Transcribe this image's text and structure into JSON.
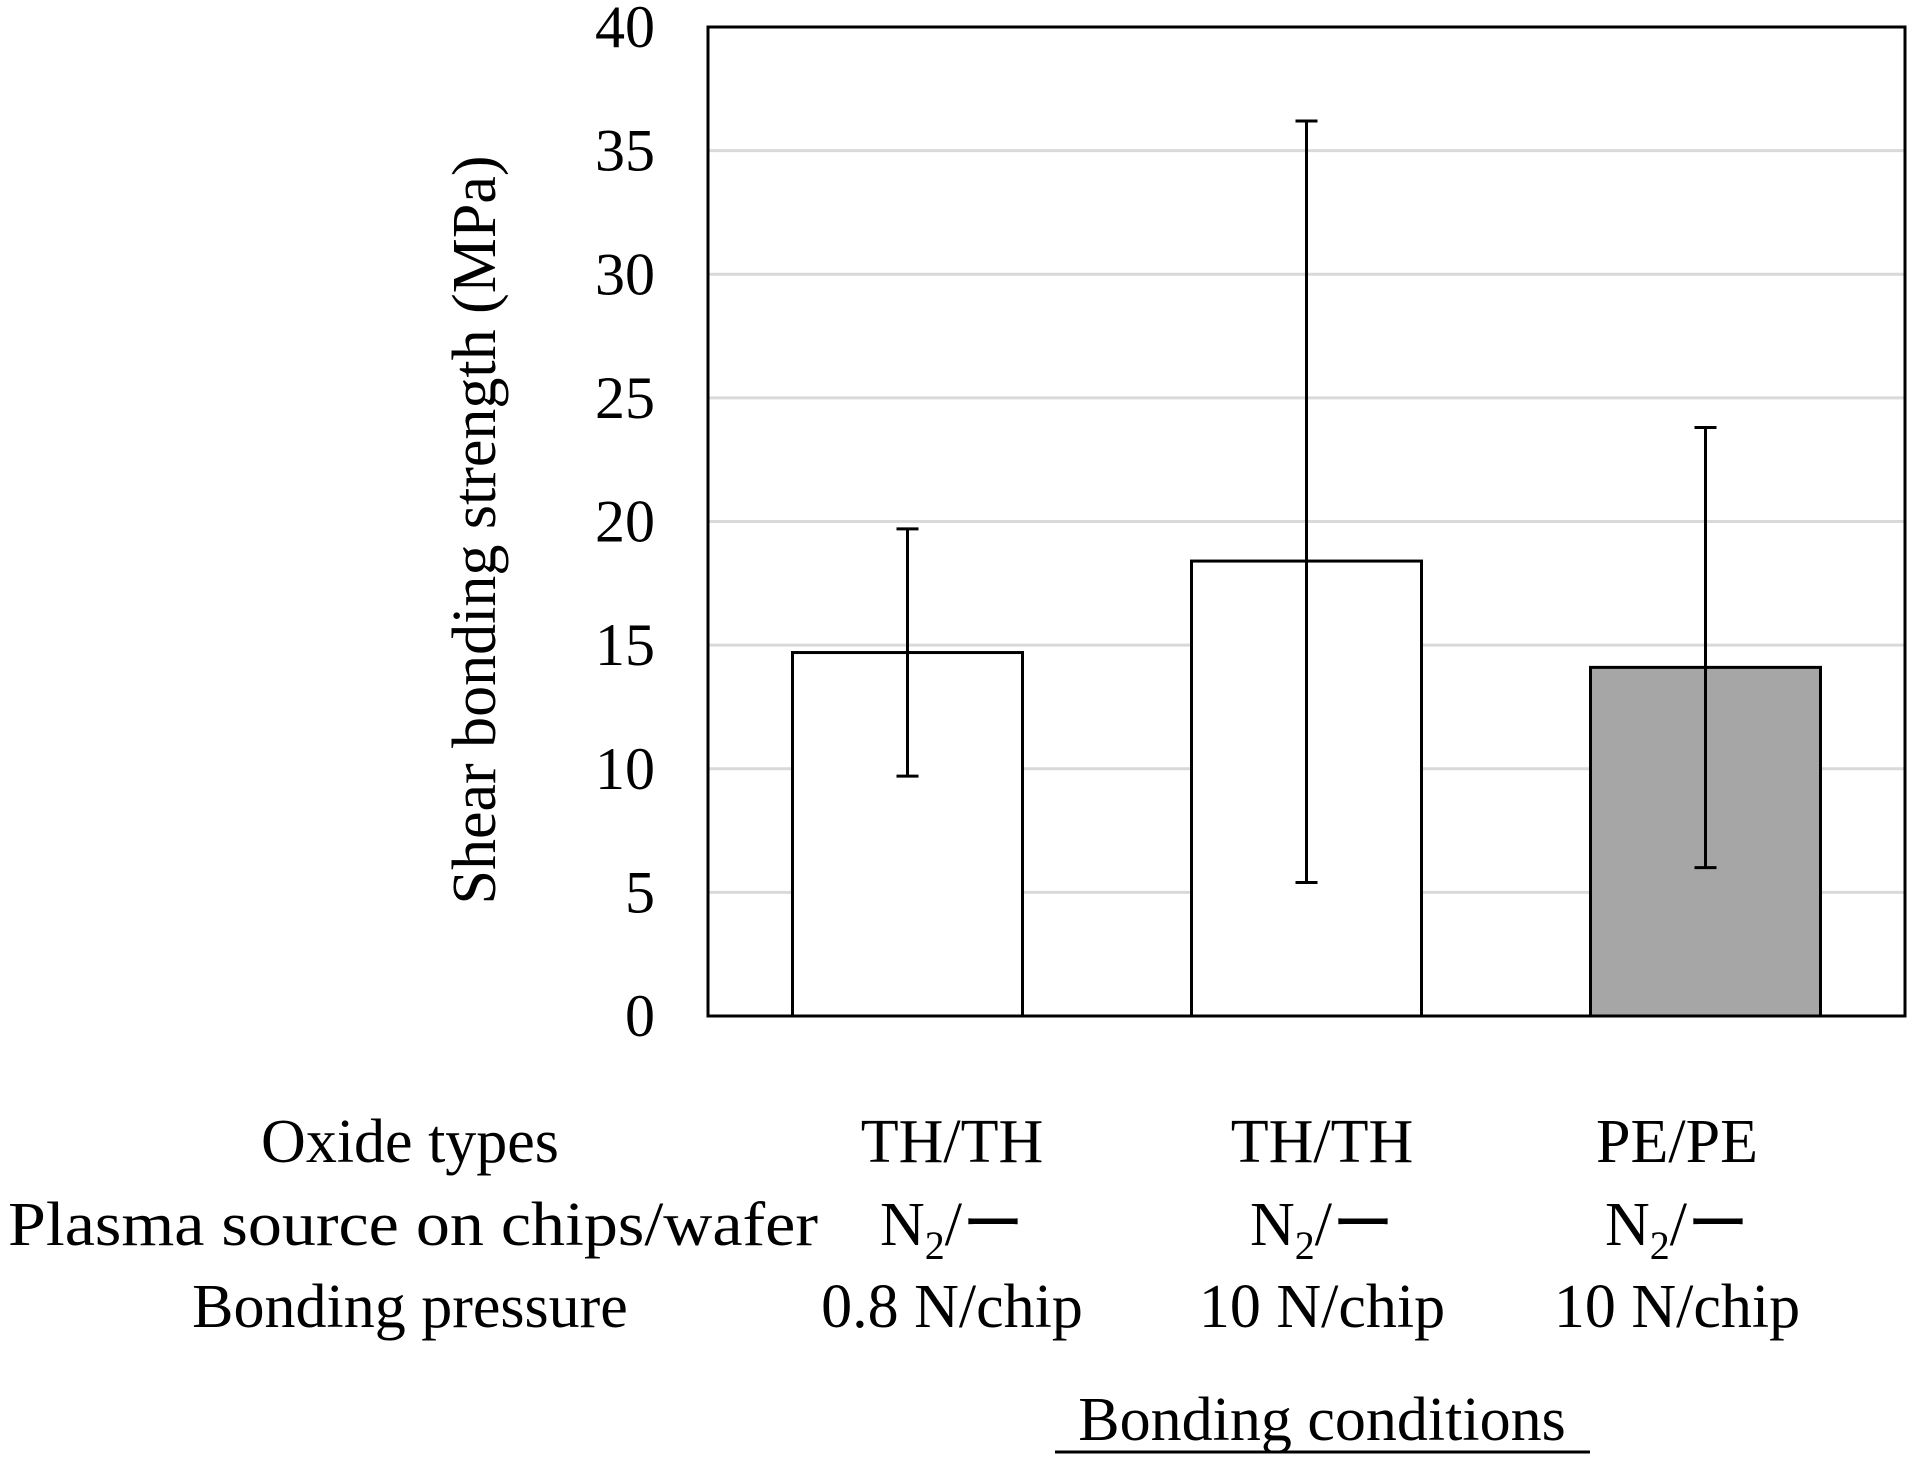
{
  "chart_data": {
    "type": "bar",
    "ylabel": "Shear bonding strength (MPa)",
    "xlabel": "Bonding conditions",
    "ylim": [
      0,
      40
    ],
    "yticks": [
      "0",
      "5",
      "10",
      "15",
      "20",
      "25",
      "30",
      "35",
      "40"
    ],
    "grid": true,
    "rows": [
      {
        "label": "Oxide types",
        "values": [
          "TH/TH",
          "TH/TH",
          "PE/PE"
        ]
      },
      {
        "label": "Plasma source on chips/wafer",
        "values": [
          "N2/ー",
          "N2/ー",
          "N2/ー"
        ]
      },
      {
        "label": "Bonding pressure",
        "values": [
          "0.8 N/chip",
          "10 N/chip",
          "10 N/chip"
        ]
      }
    ],
    "plasma_parts": {
      "main": "N",
      "subscript": "2",
      "suffix": "/ー"
    },
    "bars": [
      {
        "value": 14.7,
        "error_low": 9.7,
        "error_high": 19.7,
        "fill": "#ffffff"
      },
      {
        "value": 18.4,
        "error_low": 5.4,
        "error_high": 36.2,
        "fill": "#ffffff"
      },
      {
        "value": 14.1,
        "error_low": 6.0,
        "error_high": 23.8,
        "fill": "#a6a6a6"
      }
    ]
  }
}
